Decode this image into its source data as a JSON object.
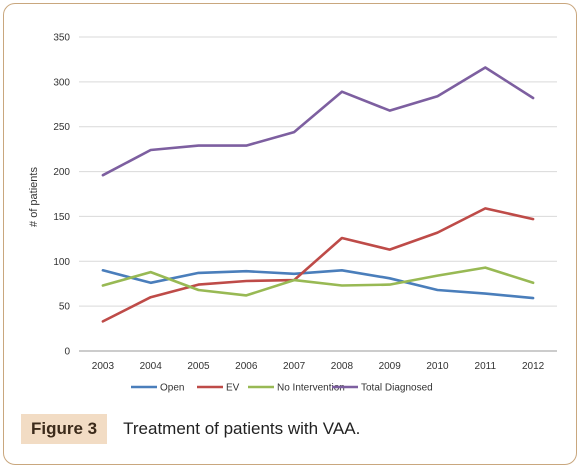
{
  "chart_data": {
    "type": "line",
    "title": "",
    "xlabel": "",
    "ylabel": "# of patients",
    "ylim": [
      0,
      350
    ],
    "yticks": [
      0,
      50,
      100,
      150,
      200,
      250,
      300,
      350
    ],
    "categories": [
      "2003",
      "2004",
      "2005",
      "2006",
      "2007",
      "2008",
      "2009",
      "2010",
      "2011",
      "2012"
    ],
    "grid": "horizontal",
    "legend": "bottom",
    "series": [
      {
        "name": "Open",
        "color": "#4a7ebb",
        "values": [
          90,
          76,
          87,
          89,
          86,
          90,
          81,
          68,
          64,
          59
        ]
      },
      {
        "name": "EV",
        "color": "#be4b48",
        "values": [
          33,
          60,
          74,
          78,
          79,
          126,
          113,
          132,
          159,
          147
        ]
      },
      {
        "name": "No Intervention",
        "color": "#98b954",
        "values": [
          73,
          88,
          68,
          62,
          79,
          73,
          74,
          84,
          93,
          76
        ]
      },
      {
        "name": "Total Diagnosed",
        "color": "#7d5fa0",
        "values": [
          196,
          224,
          229,
          229,
          244,
          289,
          268,
          284,
          316,
          282
        ]
      }
    ]
  },
  "caption": {
    "label": "Figure 3",
    "text": "Treatment of patients with VAA."
  }
}
